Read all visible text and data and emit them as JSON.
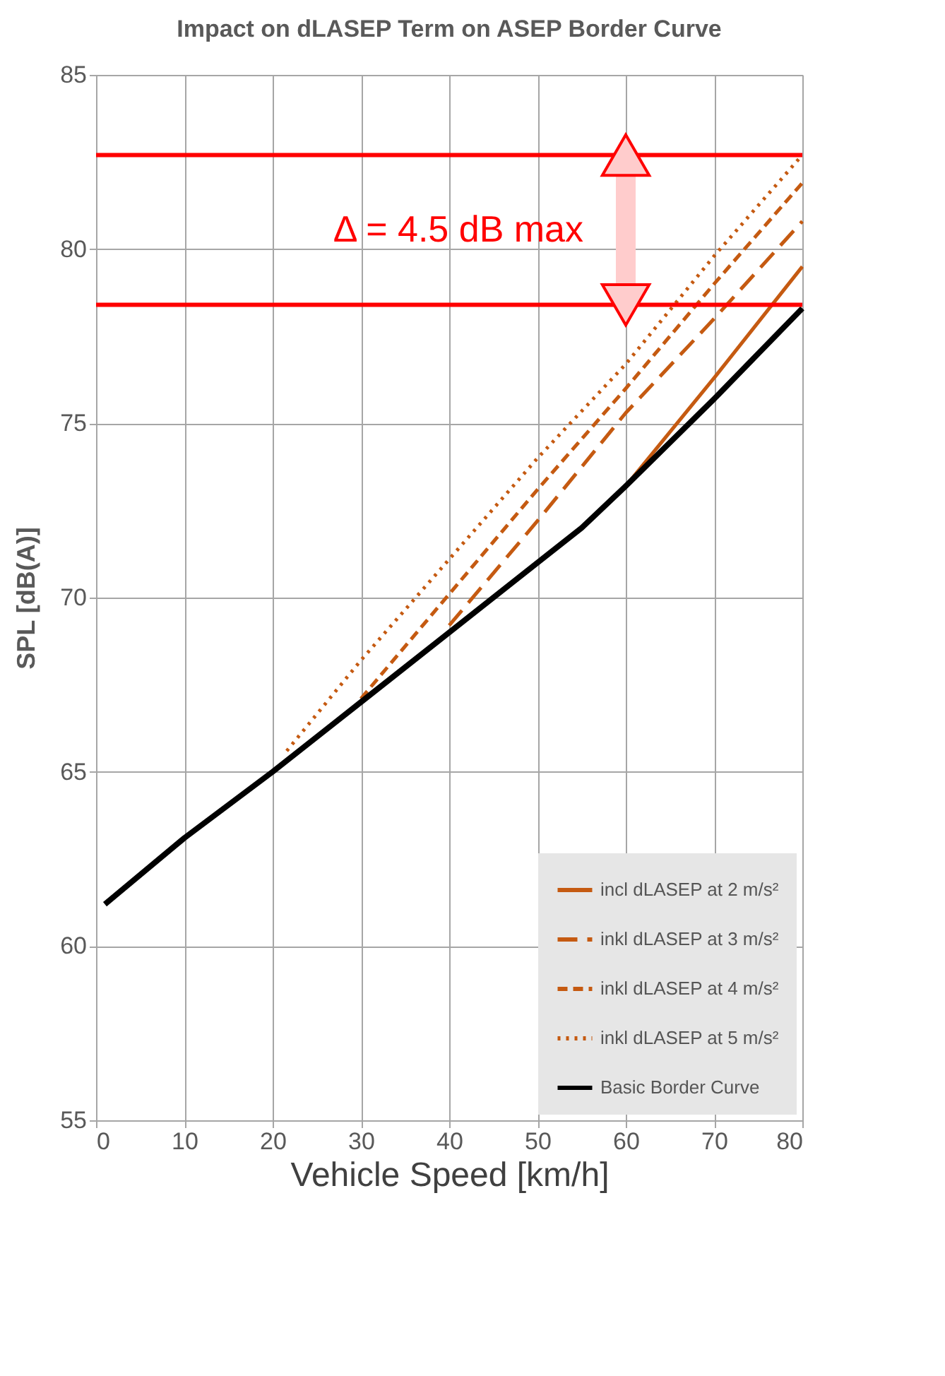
{
  "chart_data": {
    "type": "line",
    "title": "Impact on dLASEP Term on ASEP Border Curve",
    "xlabel": "Vehicle Speed [km/h]",
    "ylabel": "SPL [dB(A)]",
    "xlim": [
      0,
      80
    ],
    "xticks": [
      0,
      10,
      20,
      30,
      40,
      50,
      60,
      70,
      80
    ],
    "ylim": [
      55,
      85
    ],
    "yticks": [
      55,
      60,
      65,
      70,
      75,
      80,
      85
    ],
    "grid": true,
    "legend": "bottom right",
    "series": [
      {
        "name": "incl dLASEP at 2 m/s²",
        "color": "#c55a11",
        "line_style": "solid",
        "x": [
          55,
          60,
          70,
          80
        ],
        "values": [
          72.0,
          73.2,
          76.3,
          79.5
        ]
      },
      {
        "name": "inkl dLASEP at 3 m/s²",
        "color": "#c55a11",
        "line_style": "dashed",
        "x": [
          40,
          50,
          60,
          70,
          80
        ],
        "values": [
          69.2,
          72.2,
          75.3,
          78.0,
          80.8
        ]
      },
      {
        "name": "inkl dLASEP at 4 m/s²",
        "color": "#c55a11",
        "line_style": "dashed",
        "x": [
          30,
          40,
          50,
          60,
          70,
          80
        ],
        "values": [
          67.1,
          70.1,
          73.1,
          76.0,
          79.0,
          81.9
        ]
      },
      {
        "name": "inkl dLASEP at 5 m/s²",
        "color": "#c55a11",
        "line_style": "dotted",
        "x": [
          21.6,
          30,
          40,
          50,
          60,
          70,
          80
        ],
        "values": [
          65.6,
          68.2,
          71.1,
          74.0,
          76.7,
          79.8,
          82.7
        ]
      },
      {
        "name": "Basic Border Curve",
        "color": "#000000",
        "line_style": "solid",
        "x": [
          1,
          10,
          20,
          30,
          40,
          50,
          55,
          60,
          70,
          80
        ],
        "values": [
          61.2,
          63.1,
          65.0,
          67.0,
          69.0,
          71.0,
          72.0,
          73.2,
          75.7,
          78.3
        ]
      }
    ],
    "ref_lines": [
      {
        "axis": "y",
        "value": 82.7,
        "color": "#ff0000",
        "line_style": "solid"
      },
      {
        "axis": "y",
        "value": 78.4,
        "color": "#ff0000",
        "line_style": "solid"
      }
    ],
    "annotations": [
      "Δ = 4.5 dB max"
    ]
  }
}
